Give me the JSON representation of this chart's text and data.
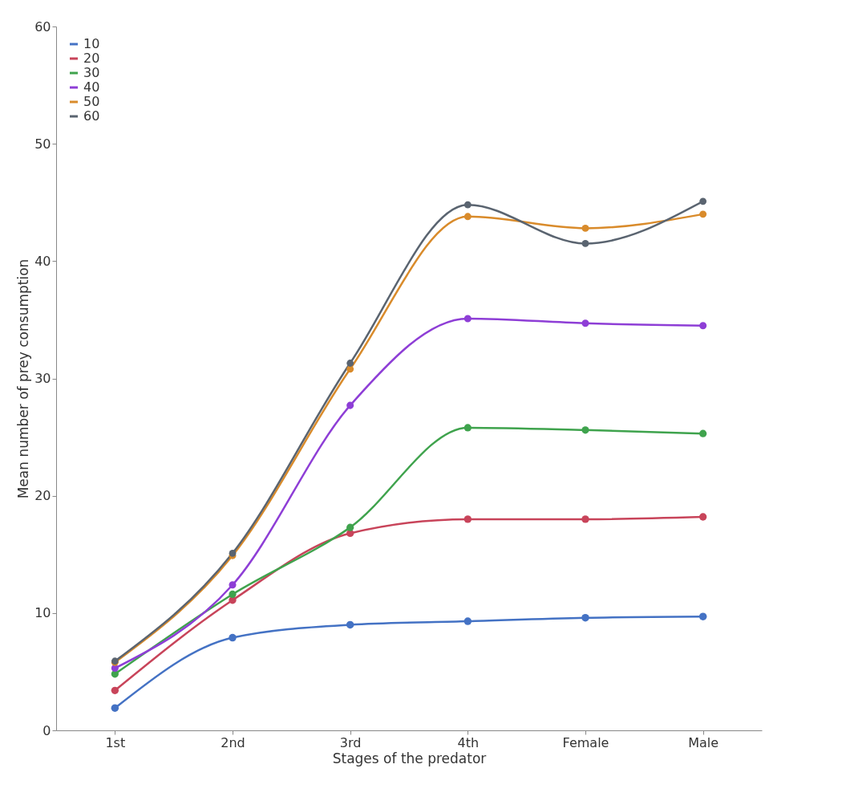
{
  "chart_data": {
    "type": "line",
    "xlabel": "Stages of the predator",
    "ylabel": "Mean number of prey consumption",
    "categories": [
      "1st",
      "2nd",
      "3rd",
      "4th",
      "Female",
      "Male"
    ],
    "series": [
      {
        "name": "10",
        "color": "#4472c4",
        "values": [
          1.9,
          7.9,
          9.0,
          9.3,
          9.6,
          9.7
        ]
      },
      {
        "name": "20",
        "color": "#c8445a",
        "values": [
          3.4,
          11.1,
          16.8,
          18.0,
          18.0,
          18.2
        ]
      },
      {
        "name": "30",
        "color": "#3fa34d",
        "values": [
          4.8,
          11.6,
          17.3,
          25.8,
          25.6,
          25.3
        ]
      },
      {
        "name": "40",
        "color": "#8e3ed6",
        "values": [
          5.3,
          12.4,
          27.7,
          35.1,
          34.7,
          34.5
        ]
      },
      {
        "name": "50",
        "color": "#d98b2b",
        "values": [
          5.8,
          14.9,
          30.8,
          43.8,
          42.8,
          44.0
        ]
      },
      {
        "name": "60",
        "color": "#5a6470",
        "values": [
          5.9,
          15.1,
          31.3,
          44.8,
          41.5,
          45.1
        ]
      }
    ],
    "ylim": [
      0,
      60
    ],
    "yticks": [
      0,
      10,
      20,
      30,
      40,
      50,
      60
    ],
    "grid": false,
    "legend": "top left",
    "marker": "circle",
    "line_style": "solid"
  }
}
